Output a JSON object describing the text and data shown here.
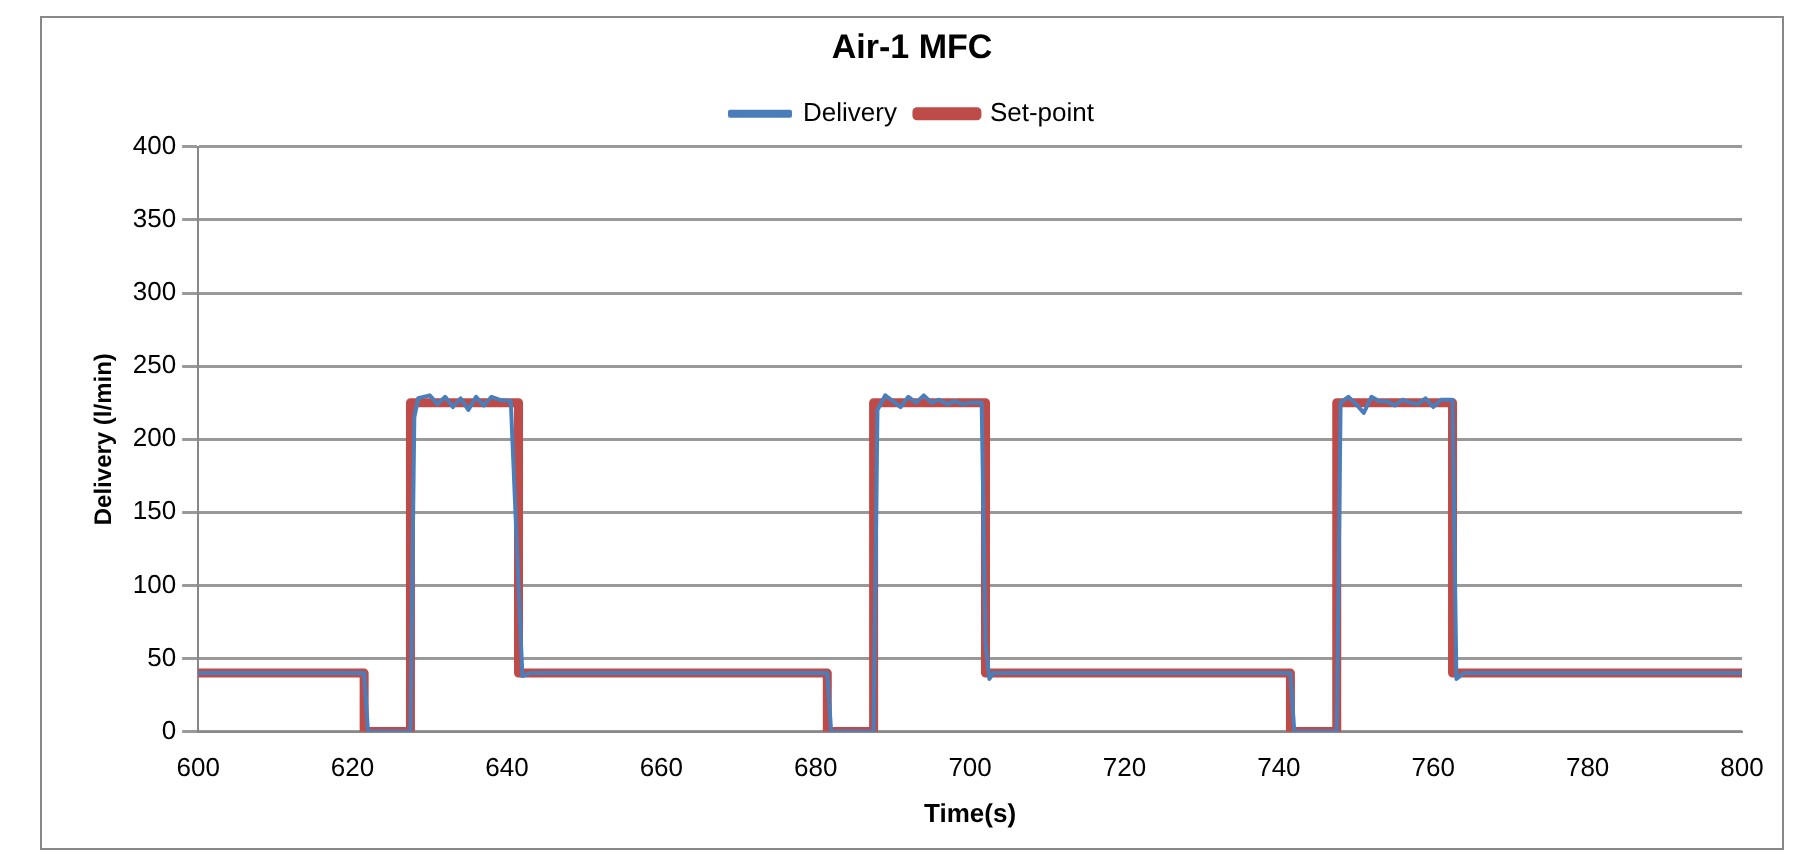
{
  "chart_data": {
    "type": "line",
    "title": "Air-1 MFC",
    "xlabel": "Time(s)",
    "ylabel": "Delivery (l/min)",
    "xlim": [
      600,
      800
    ],
    "xticks": [
      600,
      620,
      640,
      660,
      680,
      700,
      720,
      740,
      760,
      780,
      800
    ],
    "ylim": [
      0,
      400
    ],
    "yticks": [
      0,
      50,
      100,
      150,
      200,
      250,
      300,
      350,
      400
    ],
    "grid": "y",
    "legend": "top",
    "marker": "none",
    "series": [
      {
        "name": "Delivery",
        "color": "#4a7ebb",
        "x": [
          600,
          621.5,
          622,
          627.5,
          628,
          628.5,
          630,
          631,
          632,
          633,
          634,
          635,
          636,
          637,
          638,
          639,
          640.5,
          641.5,
          642,
          643,
          681.5,
          682,
          687.5,
          688,
          689,
          690,
          691,
          692,
          693,
          694,
          695,
          696,
          697,
          698,
          699,
          700,
          701.5,
          702,
          702.5,
          703,
          741.5,
          742,
          747.5,
          748,
          749,
          750,
          751,
          752,
          753,
          754,
          755,
          756,
          757,
          758,
          759,
          760,
          761,
          762.5,
          763,
          764,
          800
        ],
        "values": [
          40,
          40,
          0,
          0,
          215,
          228,
          230,
          224,
          229,
          222,
          228,
          220,
          229,
          223,
          229,
          227,
          226,
          100,
          38,
          40,
          40,
          0,
          0,
          220,
          230,
          226,
          222,
          229,
          225,
          230,
          225,
          227,
          224,
          226,
          224,
          225,
          225,
          60,
          36,
          40,
          40,
          0,
          0,
          225,
          229,
          224,
          218,
          229,
          226,
          226,
          223,
          227,
          225,
          224,
          228,
          222,
          227,
          227,
          36,
          40,
          40
        ]
      },
      {
        "name": "Set-point",
        "color": "#be4b48",
        "x": [
          600,
          621.5,
          621.5,
          627.5,
          627.5,
          641.5,
          641.5,
          681.5,
          681.5,
          687.5,
          687.5,
          702,
          702,
          741.5,
          741.5,
          747.5,
          747.5,
          762.5,
          762.5,
          800
        ],
        "values": [
          40,
          40,
          0,
          0,
          225,
          225,
          40,
          40,
          0,
          0,
          225,
          225,
          40,
          40,
          0,
          0,
          225,
          225,
          40,
          40
        ]
      }
    ]
  }
}
